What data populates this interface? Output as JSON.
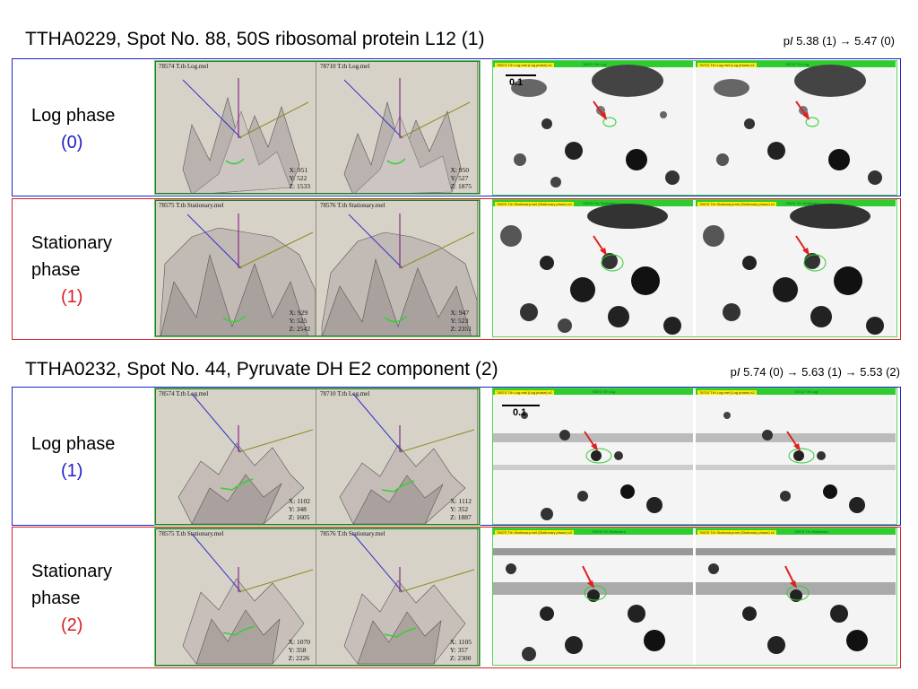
{
  "sections": [
    {
      "title": "TTHA0229, Spot No. 88, 50S ribosomal protein L12 (1)",
      "pi": {
        "prefix": "p",
        "italic": "I",
        "values": " 5.38 (1) → 5.47 (0)"
      },
      "scale_label": "0.1",
      "rows": [
        {
          "phase": "Log phase",
          "num": "(0)",
          "plots": [
            {
              "title": "78574 T.th Log.mel",
              "xyz": [
                "X: 951",
                "Y: 522",
                "Z: 1533"
              ]
            },
            {
              "title": "78710 T.th Log.mel",
              "xyz": [
                "X: 950",
                "Y: 527",
                "Z: 1875"
              ]
            }
          ],
          "gels": [
            {
              "head": "78574 T.th Log",
              "tag": "78574 T.th Log.mel (Log phase) s1"
            },
            {
              "head": "78710 T.th Log",
              "tag": "78710 T.th Log.mel (Log phase) s1"
            }
          ]
        },
        {
          "phase": "Stationary phase",
          "num": "(1)",
          "plots": [
            {
              "title": "78575 T.th Stationary.mel",
              "xyz": [
                "X: 929",
                "Y: 525",
                "Z: 2542"
              ]
            },
            {
              "title": "78576 T.th Stationary.mel",
              "xyz": [
                "X: 947",
                "Y: 523",
                "Z: 2351"
              ]
            }
          ],
          "gels": [
            {
              "head": "78575 T.th Stationary",
              "tag": "78575 T.th Stationary.mel (Stationary phase) s1"
            },
            {
              "head": "78576 T.th Stationary",
              "tag": "78576 T.th Stationary.mel (Stationary phase) s1"
            }
          ]
        }
      ]
    },
    {
      "title": "TTHA0232, Spot No. 44, Pyruvate DH E2 component (2)",
      "pi": {
        "prefix": "p",
        "italic": "I",
        "values": " 5.74 (0) → 5.63 (1) → 5.53 (2)"
      },
      "scale_label": "0.1",
      "rows": [
        {
          "phase": "Log phase",
          "num": "(1)",
          "plots": [
            {
              "title": "78574 T.th Log.mel",
              "xyz": [
                "X: 1102",
                "Y: 348",
                "Z: 1605"
              ]
            },
            {
              "title": "78710 T.th Log.mel",
              "xyz": [
                "X: 1112",
                "Y: 352",
                "Z: 1887"
              ]
            }
          ],
          "gels": [
            {
              "head": "78574 T.th Log",
              "tag": "78574 T.th Log.mel (Log phase) s2"
            },
            {
              "head": "78710 T.th Log",
              "tag": "78710 T.th Log.mel (Log phase) s2"
            }
          ]
        },
        {
          "phase": "Stationary phase",
          "num": "(2)",
          "plots": [
            {
              "title": "78575 T.th Stationary.mel",
              "xyz": [
                "X: 1070",
                "Y: 358",
                "Z: 2226"
              ]
            },
            {
              "title": "78576 T.th Stationary.mel",
              "xyz": [
                "X: 1105",
                "Y: 357",
                "Z: 2300"
              ]
            }
          ],
          "gels": [
            {
              "head": "78575 T.th Stationary",
              "tag": "78575 T.th Stationary.mel (Stationary phase) s2"
            },
            {
              "head": "78576 T.th Stationary",
              "tag": "78576 T.th Stationary.mel (Stationary phase) s2"
            }
          ]
        }
      ]
    }
  ],
  "colors": {
    "log_phase": "#1f22c9",
    "stationary_phase": "#d72027",
    "marker_green": "#2ecc2e",
    "arrow_red": "#e02020"
  }
}
